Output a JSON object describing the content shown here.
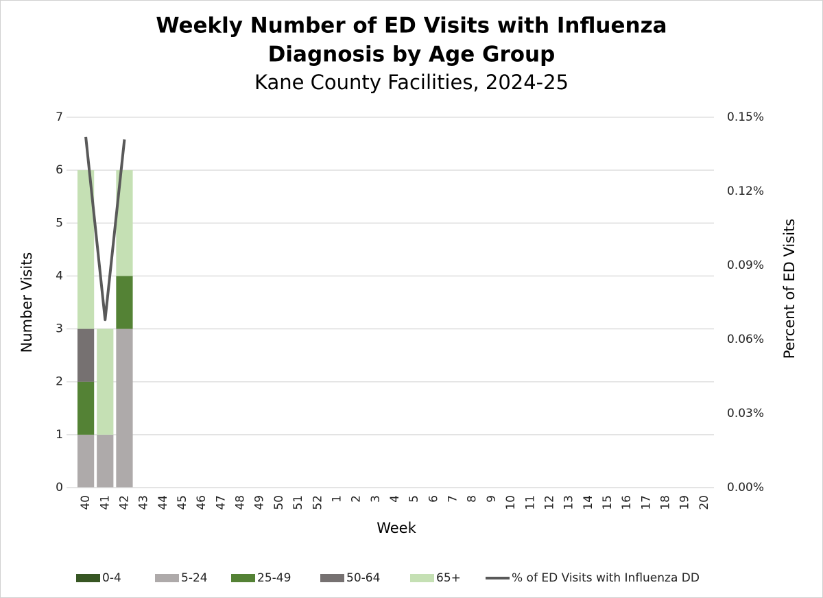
{
  "chart_data": {
    "type": "bar",
    "title": [
      "Weekly Number of ED Visits with Influenza",
      "Diagnosis by Age Group"
    ],
    "subtitle": "Kane County Facilities, 2024-25",
    "x_label": "Week",
    "y_label": "Number Visits",
    "y2_label": "Percent of ED Visits",
    "categories": [
      "40",
      "41",
      "42",
      "43",
      "44",
      "45",
      "46",
      "47",
      "48",
      "49",
      "50",
      "51",
      "52",
      "1",
      "2",
      "3",
      "4",
      "5",
      "6",
      "7",
      "8",
      "9",
      "10",
      "11",
      "12",
      "13",
      "14",
      "15",
      "16",
      "17",
      "18",
      "19",
      "20"
    ],
    "ylim": [
      0,
      7
    ],
    "yticks": [
      0,
      1,
      2,
      3,
      4,
      5,
      6,
      7
    ],
    "y2lim": [
      0,
      0.15
    ],
    "y2ticks": [
      {
        "value": 0,
        "label": "0.00%"
      },
      {
        "value": 0.03,
        "label": "0.03%"
      },
      {
        "value": 0.06,
        "label": "0.06%"
      },
      {
        "value": 0.09,
        "label": "0.09%"
      },
      {
        "value": 0.12,
        "label": "0.12%"
      },
      {
        "value": 0.15,
        "label": "0.15%"
      }
    ],
    "grid": true,
    "legend": "bottom",
    "stacked": true,
    "series": [
      {
        "name": "0-4",
        "color": "#375623",
        "values": [
          0,
          0,
          0,
          null,
          null,
          null,
          null,
          null,
          null,
          null,
          null,
          null,
          null,
          null,
          null,
          null,
          null,
          null,
          null,
          null,
          null,
          null,
          null,
          null,
          null,
          null,
          null,
          null,
          null,
          null,
          null,
          null,
          null
        ]
      },
      {
        "name": "5-24",
        "color": "#aeaaaa",
        "values": [
          1,
          1,
          3,
          null,
          null,
          null,
          null,
          null,
          null,
          null,
          null,
          null,
          null,
          null,
          null,
          null,
          null,
          null,
          null,
          null,
          null,
          null,
          null,
          null,
          null,
          null,
          null,
          null,
          null,
          null,
          null,
          null,
          null
        ]
      },
      {
        "name": "25-49",
        "color": "#548235",
        "values": [
          1,
          0,
          1,
          null,
          null,
          null,
          null,
          null,
          null,
          null,
          null,
          null,
          null,
          null,
          null,
          null,
          null,
          null,
          null,
          null,
          null,
          null,
          null,
          null,
          null,
          null,
          null,
          null,
          null,
          null,
          null,
          null,
          null
        ]
      },
      {
        "name": "50-64",
        "color": "#767171",
        "values": [
          1,
          0,
          0,
          null,
          null,
          null,
          null,
          null,
          null,
          null,
          null,
          null,
          null,
          null,
          null,
          null,
          null,
          null,
          null,
          null,
          null,
          null,
          null,
          null,
          null,
          null,
          null,
          null,
          null,
          null,
          null,
          null,
          null
        ]
      },
      {
        "name": "65+",
        "color": "#c5e0b4",
        "values": [
          3,
          2,
          2,
          null,
          null,
          null,
          null,
          null,
          null,
          null,
          null,
          null,
          null,
          null,
          null,
          null,
          null,
          null,
          null,
          null,
          null,
          null,
          null,
          null,
          null,
          null,
          null,
          null,
          null,
          null,
          null,
          null,
          null
        ]
      },
      {
        "name": "% of ED Visits with Influenza DD",
        "color": "#595959",
        "type": "line",
        "axis": "y2",
        "values": [
          0.142,
          0.068,
          0.141,
          null,
          null,
          null,
          null,
          null,
          null,
          null,
          null,
          null,
          null,
          null,
          null,
          null,
          null,
          null,
          null,
          null,
          null,
          null,
          null,
          null,
          null,
          null,
          null,
          null,
          null,
          null,
          null,
          null,
          null
        ]
      }
    ]
  }
}
